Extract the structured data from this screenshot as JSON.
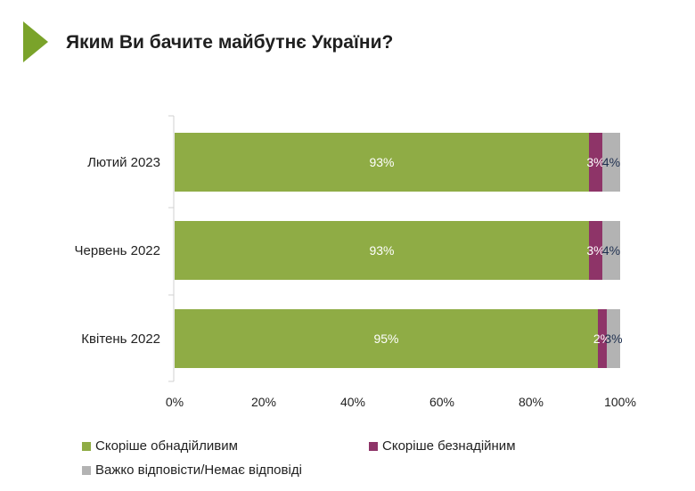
{
  "title": "Яким Ви бачите майбутнє України?",
  "colors": {
    "accent": "#7aa32a",
    "hopeful": "#8fac45",
    "hopeless": "#8e3468",
    "hard": "#b3b3b3"
  },
  "chart_data": {
    "type": "bar",
    "orientation": "horizontal",
    "stacked": true,
    "title": "Яким Ви бачите майбутнє України?",
    "categories": [
      "Лютий 2023",
      "Червень 2022",
      "Квітень 2022"
    ],
    "series": [
      {
        "name": "Скоріше обнадійливим",
        "values": [
          93,
          93,
          95
        ],
        "labels": [
          "93%",
          "93%",
          "95%"
        ]
      },
      {
        "name": "Скоріше безнадійним",
        "values": [
          3,
          3,
          2
        ],
        "labels": [
          "3%",
          "3%",
          "2%"
        ]
      },
      {
        "name": "Важко відповісти/Немає відповіді",
        "values": [
          4,
          4,
          3
        ],
        "labels": [
          "4%",
          "4%",
          "3%"
        ]
      }
    ],
    "x_ticks": [
      "0%",
      "20%",
      "40%",
      "60%",
      "80%",
      "100%"
    ],
    "xlim": [
      0,
      100
    ],
    "grid": false,
    "legend_position": "bottom"
  }
}
